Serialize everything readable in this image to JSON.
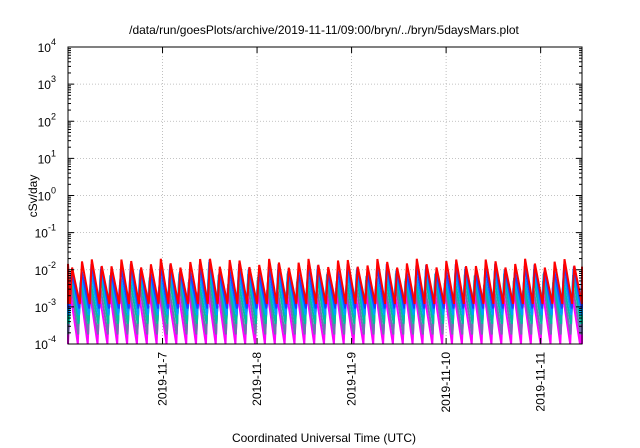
{
  "chart_data": {
    "type": "line",
    "title": "/data/run/goesPlots/archive/2019-11-11/09:00/bryn/../bryn/5daysMars.plot",
    "xlabel": "Coordinated Universal Time (UTC)",
    "ylabel": "cSv/day",
    "yscale": "log",
    "ylim": [
      0.0001,
      10000
    ],
    "xlim": [
      "2019-11-06 00:00",
      "2019-11-11 10:30"
    ],
    "grid": true,
    "y_ticks": [
      {
        "base": "10",
        "exp": "-4"
      },
      {
        "base": "10",
        "exp": "-3"
      },
      {
        "base": "10",
        "exp": "-2"
      },
      {
        "base": "10",
        "exp": "-1"
      },
      {
        "base": "10",
        "exp": "0"
      },
      {
        "base": "10",
        "exp": "1"
      },
      {
        "base": "10",
        "exp": "2"
      },
      {
        "base": "10",
        "exp": "3"
      },
      {
        "base": "10",
        "exp": "4"
      }
    ],
    "x_ticks": [
      "2019-11-7",
      "2019-11-8",
      "2019-11-9",
      "2019-11-10",
      "2019-11-11"
    ],
    "sawtooth_period_hours": 2.5,
    "series": [
      {
        "color": "#ff00ff",
        "peak": 0.0025,
        "trough": 8e-05
      },
      {
        "color": "#7070b0",
        "peak": 0.004,
        "trough": 0.00018
      },
      {
        "color": "#00c0a0",
        "peak": 0.006,
        "trough": 0.00035
      },
      {
        "color": "#00a0ff",
        "peak": 0.008,
        "trough": 0.0006
      },
      {
        "color": "#2040ff",
        "peak": 0.011,
        "trough": 0.0009
      },
      {
        "color": "#ff0000",
        "peak": 0.015,
        "trough": 0.0012
      }
    ]
  }
}
